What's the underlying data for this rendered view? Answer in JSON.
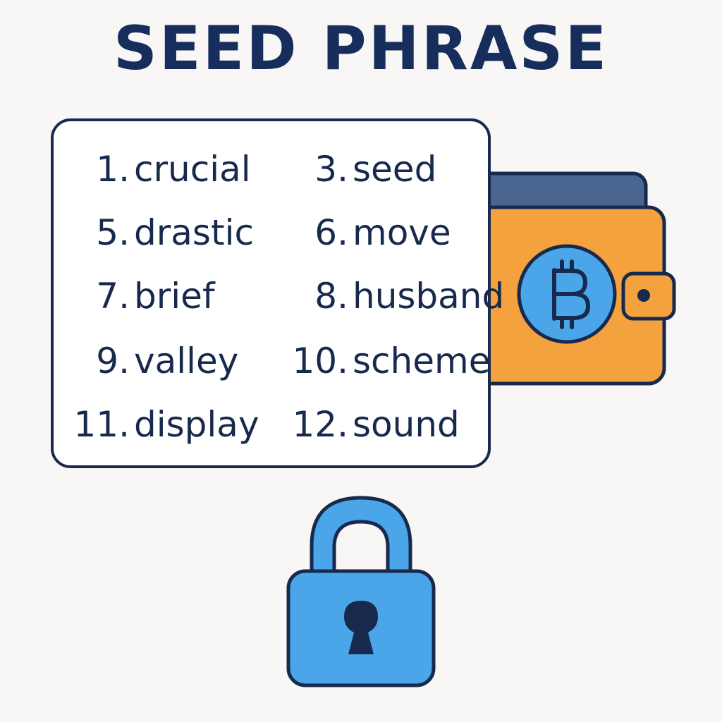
{
  "title": "SEED PHRASE",
  "words": [
    {
      "number": "1.",
      "word": "crucial"
    },
    {
      "number": "3.",
      "word": "seed"
    },
    {
      "number": "5.",
      "word": "drastic"
    },
    {
      "number": "6.",
      "word": "move"
    },
    {
      "number": "7.",
      "word": "brief"
    },
    {
      "number": "8.",
      "word": "husband"
    },
    {
      "number": "9.",
      "word": "valley"
    },
    {
      "number": "10.",
      "word": "scheme"
    },
    {
      "number": "11.",
      "word": "display"
    },
    {
      "number": "12.",
      "word": "sound"
    }
  ],
  "icons": {
    "wallet": "wallet-icon",
    "coin": "bitcoin-icon",
    "lock": "padlock-icon"
  },
  "colors": {
    "title": "#172e5c",
    "outline": "#172a4d",
    "wallet_body": "#f3a23e",
    "wallet_back": "#4a6690",
    "accent_blue": "#4aa6e8",
    "background": "#f8f7f5"
  }
}
